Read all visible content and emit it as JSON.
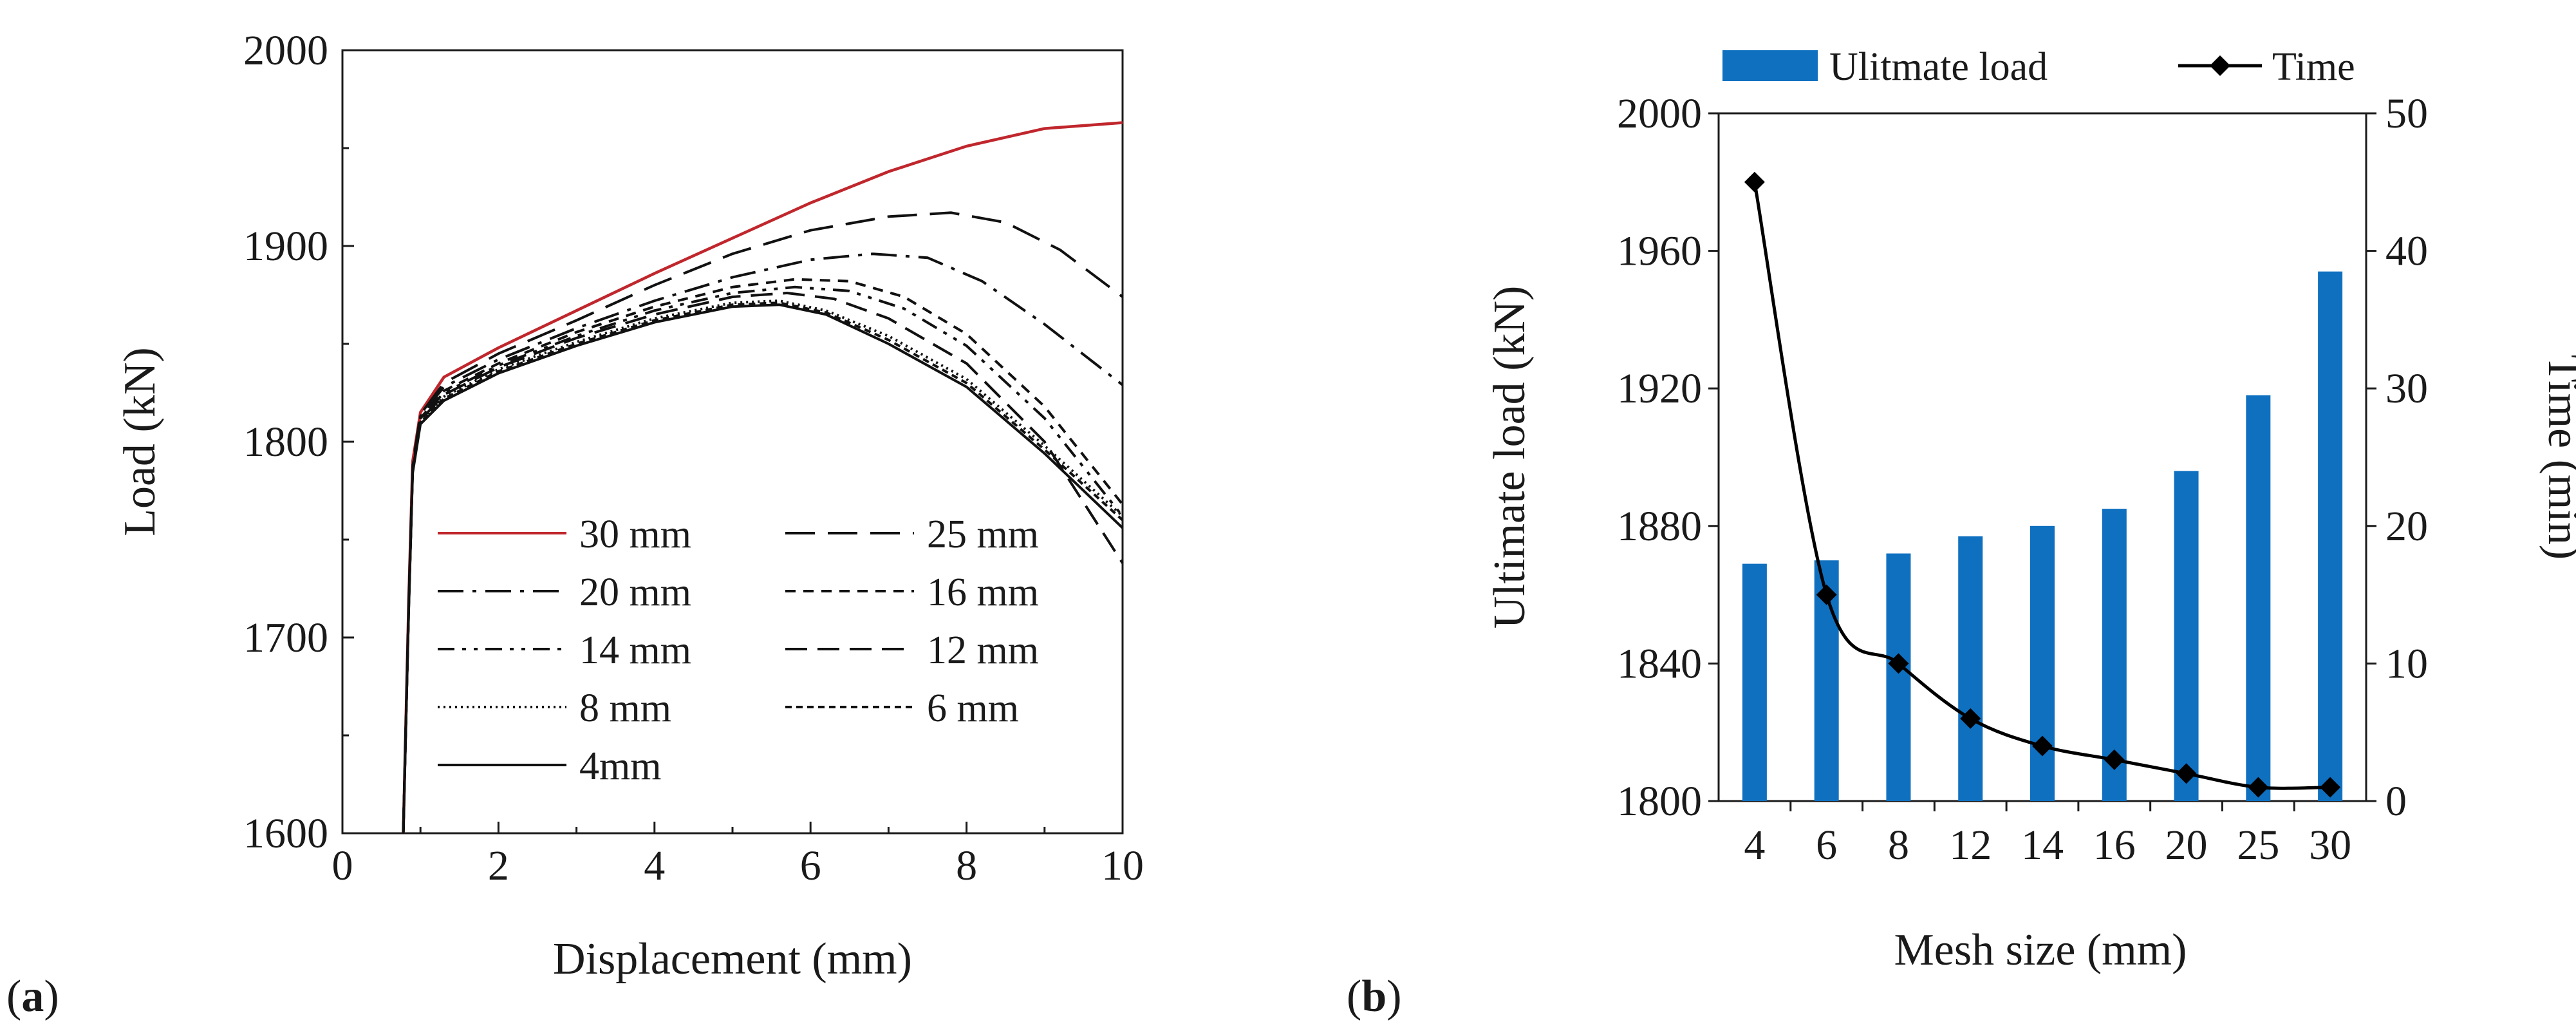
{
  "panel_labels": {
    "a": "a",
    "b": "b"
  },
  "chart_data": [
    {
      "type": "line",
      "panel": "a",
      "title": "",
      "xlabel": "Displacement (mm)",
      "ylabel": "Load (kN)",
      "xlim": [
        0,
        10
      ],
      "ylim": [
        1600,
        2000
      ],
      "xticks": [
        "0",
        "2",
        "4",
        "6",
        "8",
        "10"
      ],
      "yticks": [
        "1600",
        "1700",
        "1800",
        "1900",
        "2000"
      ],
      "legend_position": "inside-lower-left",
      "series": [
        {
          "name": "30 mm",
          "color": "#c0272d",
          "dash": "solid",
          "x": [
            0.78,
            0.85,
            0.9,
            1.0,
            1.3,
            2.0,
            3.0,
            4.0,
            5.0,
            6.0,
            7.0,
            8.0,
            9.0,
            10.0
          ],
          "y": [
            1600,
            1720,
            1790,
            1815,
            1833,
            1848,
            1867,
            1886,
            1904,
            1922,
            1938,
            1951,
            1960,
            1963
          ]
        },
        {
          "name": "25 mm",
          "color": "#111111",
          "dash": "longdash",
          "x": [
            0.78,
            0.85,
            0.9,
            1.0,
            1.3,
            2.0,
            3.0,
            4.0,
            5.0,
            6.0,
            7.0,
            7.8,
            8.5,
            9.2,
            10.0
          ],
          "y": [
            1600,
            1718,
            1788,
            1814,
            1830,
            1845,
            1862,
            1880,
            1896,
            1908,
            1915,
            1917,
            1912,
            1898,
            1874
          ]
        },
        {
          "name": "20 mm",
          "color": "#111111",
          "dash": "dashdot",
          "x": [
            0.78,
            0.85,
            0.9,
            1.0,
            1.3,
            2.0,
            3.0,
            4.0,
            5.0,
            6.0,
            6.8,
            7.5,
            8.2,
            9.0,
            10.0
          ],
          "y": [
            1600,
            1717,
            1787,
            1813,
            1828,
            1842,
            1858,
            1872,
            1884,
            1893,
            1896,
            1894,
            1882,
            1860,
            1829
          ]
        },
        {
          "name": "16 mm",
          "color": "#111111",
          "dash": "shortdash",
          "x": [
            0.78,
            0.85,
            0.9,
            1.0,
            1.3,
            2.0,
            3.0,
            4.0,
            5.0,
            5.8,
            6.5,
            7.2,
            8.0,
            9.0,
            10.0
          ],
          "y": [
            1600,
            1716,
            1786,
            1812,
            1826,
            1840,
            1856,
            1869,
            1879,
            1883,
            1882,
            1874,
            1855,
            1818,
            1768
          ]
        },
        {
          "name": "14 mm",
          "color": "#111111",
          "dash": "dashdotdot",
          "x": [
            0.78,
            0.85,
            0.9,
            1.0,
            1.3,
            2.0,
            3.0,
            4.0,
            5.0,
            5.8,
            6.5,
            7.2,
            8.0,
            9.0,
            10.0
          ],
          "y": [
            1600,
            1716,
            1786,
            1812,
            1825,
            1839,
            1854,
            1867,
            1876,
            1879,
            1877,
            1868,
            1849,
            1812,
            1762
          ]
        },
        {
          "name": "12 mm",
          "color": "#111111",
          "dash": "longdash2",
          "x": [
            0.78,
            0.85,
            0.9,
            1.0,
            1.3,
            2.0,
            3.0,
            4.0,
            5.0,
            5.7,
            6.3,
            7.0,
            8.0,
            9.0,
            10.0
          ],
          "y": [
            1600,
            1715,
            1785,
            1811,
            1824,
            1838,
            1853,
            1865,
            1874,
            1876,
            1873,
            1863,
            1840,
            1800,
            1738
          ]
        },
        {
          "name": "8 mm",
          "color": "#111111",
          "dash": "dotted",
          "x": [
            0.78,
            0.85,
            0.9,
            1.0,
            1.3,
            2.0,
            3.0,
            4.0,
            5.0,
            5.6,
            6.2,
            7.0,
            8.0,
            9.0,
            10.0
          ],
          "y": [
            1600,
            1715,
            1785,
            1810,
            1823,
            1837,
            1851,
            1863,
            1871,
            1872,
            1867,
            1854,
            1832,
            1798,
            1762
          ]
        },
        {
          "name": "6 mm",
          "color": "#111111",
          "dash": "fine-dash",
          "x": [
            0.78,
            0.85,
            0.9,
            1.0,
            1.3,
            2.0,
            3.0,
            4.0,
            5.0,
            5.6,
            6.2,
            7.0,
            8.0,
            9.0,
            10.0
          ],
          "y": [
            1600,
            1715,
            1785,
            1810,
            1822,
            1836,
            1850,
            1862,
            1870,
            1871,
            1866,
            1852,
            1830,
            1796,
            1760
          ]
        },
        {
          "name": "4mm",
          "color": "#111111",
          "dash": "solid",
          "x": [
            0.78,
            0.85,
            0.9,
            1.0,
            1.3,
            2.0,
            3.0,
            4.0,
            5.0,
            5.6,
            6.2,
            7.0,
            8.0,
            9.0,
            10.0
          ],
          "y": [
            1600,
            1714,
            1784,
            1809,
            1821,
            1835,
            1849,
            1861,
            1869,
            1870,
            1865,
            1850,
            1828,
            1794,
            1756
          ]
        }
      ]
    },
    {
      "type": "bar",
      "panel": "b",
      "title": "",
      "xlabel": "Mesh size (mm)",
      "ylabel": "Ultimate load (kN)",
      "ylabel_right": "Time (min)",
      "categories": [
        "4",
        "6",
        "8",
        "12",
        "14",
        "16",
        "20",
        "25",
        "30"
      ],
      "ylim": [
        1800,
        2000
      ],
      "ylim_right": [
        0,
        50
      ],
      "yticks": [
        "1800",
        "1840",
        "1880",
        "1920",
        "1960",
        "2000"
      ],
      "yticks_right": [
        "0",
        "10",
        "20",
        "30",
        "40",
        "50"
      ],
      "legend_position": "top",
      "series": [
        {
          "name": "Ulitmate load",
          "type": "bar",
          "axis": "left",
          "color": "#0f70c0",
          "values": [
            1869,
            1870,
            1872,
            1877,
            1880,
            1885,
            1896,
            1918,
            1954
          ]
        },
        {
          "name": "Time",
          "type": "line",
          "axis": "right",
          "color": "#000000",
          "marker": "diamond",
          "values": [
            45,
            15,
            10,
            6,
            4,
            3,
            2,
            1,
            1
          ]
        }
      ]
    }
  ]
}
